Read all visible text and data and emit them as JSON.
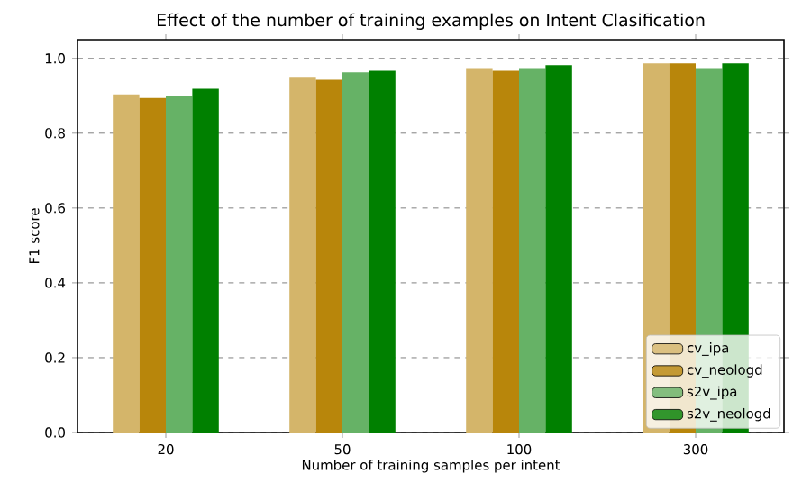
{
  "chart_data": {
    "type": "bar",
    "title": "Effect of the number of training examples on Intent Clasification",
    "xlabel": "Number of training samples per intent",
    "ylabel": "F1 score",
    "categories": [
      "20",
      "50",
      "100",
      "300"
    ],
    "series": [
      {
        "name": "cv_ipa",
        "color": "#d4b56a",
        "values": [
          0.904,
          0.948,
          0.972,
          0.987
        ]
      },
      {
        "name": "cv_neologd",
        "color": "#b8860b",
        "values": [
          0.894,
          0.943,
          0.967,
          0.987
        ]
      },
      {
        "name": "s2v_ipa",
        "color": "#66b266",
        "values": [
          0.899,
          0.963,
          0.972,
          0.972
        ]
      },
      {
        "name": "s2v_neologd",
        "color": "#008000",
        "values": [
          0.919,
          0.967,
          0.982,
          0.987
        ]
      }
    ],
    "ylim": [
      0,
      1.05
    ],
    "yticks": [
      {
        "value": 0,
        "label": "0.0"
      },
      {
        "value": 0.2,
        "label": "0.2"
      },
      {
        "value": 0.4,
        "label": "0.4"
      },
      {
        "value": 0.6,
        "label": "0.6"
      },
      {
        "value": 0.8,
        "label": "0.8"
      },
      {
        "value": 1.0,
        "label": "1.0"
      }
    ],
    "grid": "y",
    "legend": "bottom right"
  }
}
